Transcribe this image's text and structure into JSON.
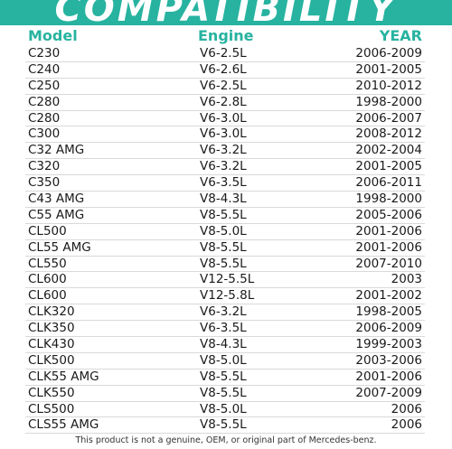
{
  "banner": {
    "title": "COMPATIBILITY"
  },
  "headers": {
    "model": "Model",
    "engine": "Engine",
    "year": "YEAR"
  },
  "rows": [
    {
      "model": "C230",
      "engine": "V6-2.5L",
      "year": "2006-2009"
    },
    {
      "model": "C240",
      "engine": "V6-2.6L",
      "year": "2001-2005"
    },
    {
      "model": "C250",
      "engine": "V6-2.5L",
      "year": "2010-2012"
    },
    {
      "model": "C280",
      "engine": "V6-2.8L",
      "year": "1998-2000"
    },
    {
      "model": "C280",
      "engine": "V6-3.0L",
      "year": "2006-2007"
    },
    {
      "model": "C300",
      "engine": "V6-3.0L",
      "year": "2008-2012"
    },
    {
      "model": "C32 AMG",
      "engine": "V6-3.2L",
      "year": "2002-2004"
    },
    {
      "model": "C320",
      "engine": "V6-3.2L",
      "year": "2001-2005"
    },
    {
      "model": "C350",
      "engine": "V6-3.5L",
      "year": "2006-2011"
    },
    {
      "model": "C43 AMG",
      "engine": "V8-4.3L",
      "year": "1998-2000"
    },
    {
      "model": "C55 AMG",
      "engine": "V8-5.5L",
      "year": "2005-2006"
    },
    {
      "model": "CL500",
      "engine": "V8-5.0L",
      "year": "2001-2006"
    },
    {
      "model": "CL55 AMG",
      "engine": "V8-5.5L",
      "year": "2001-2006"
    },
    {
      "model": "CL550",
      "engine": "V8-5.5L",
      "year": "2007-2010"
    },
    {
      "model": "CL600",
      "engine": "V12-5.5L",
      "year": "2003"
    },
    {
      "model": "CL600",
      "engine": "V12-5.8L",
      "year": "2001-2002"
    },
    {
      "model": "CLK320",
      "engine": "V6-3.2L",
      "year": "1998-2005"
    },
    {
      "model": "CLK350",
      "engine": "V6-3.5L",
      "year": "2006-2009"
    },
    {
      "model": "CLK430",
      "engine": "V8-4.3L",
      "year": "1999-2003"
    },
    {
      "model": "CLK500",
      "engine": "V8-5.0L",
      "year": "2003-2006"
    },
    {
      "model": "CLK55 AMG",
      "engine": "V8-5.5L",
      "year": "2001-2006"
    },
    {
      "model": "CLK550",
      "engine": "V8-5.5L",
      "year": "2007-2009"
    },
    {
      "model": "CLS500",
      "engine": "V8-5.0L",
      "year": "2006"
    },
    {
      "model": "CLS55 AMG",
      "engine": "V8-5.5L",
      "year": "2006"
    }
  ],
  "footer": {
    "note": "This product is not a genuine, OEM, or original part of Mercedes-benz."
  },
  "colors": {
    "accent": "#27b3a0",
    "text": "#1a1a1a",
    "divider": "#d9d9d9"
  }
}
